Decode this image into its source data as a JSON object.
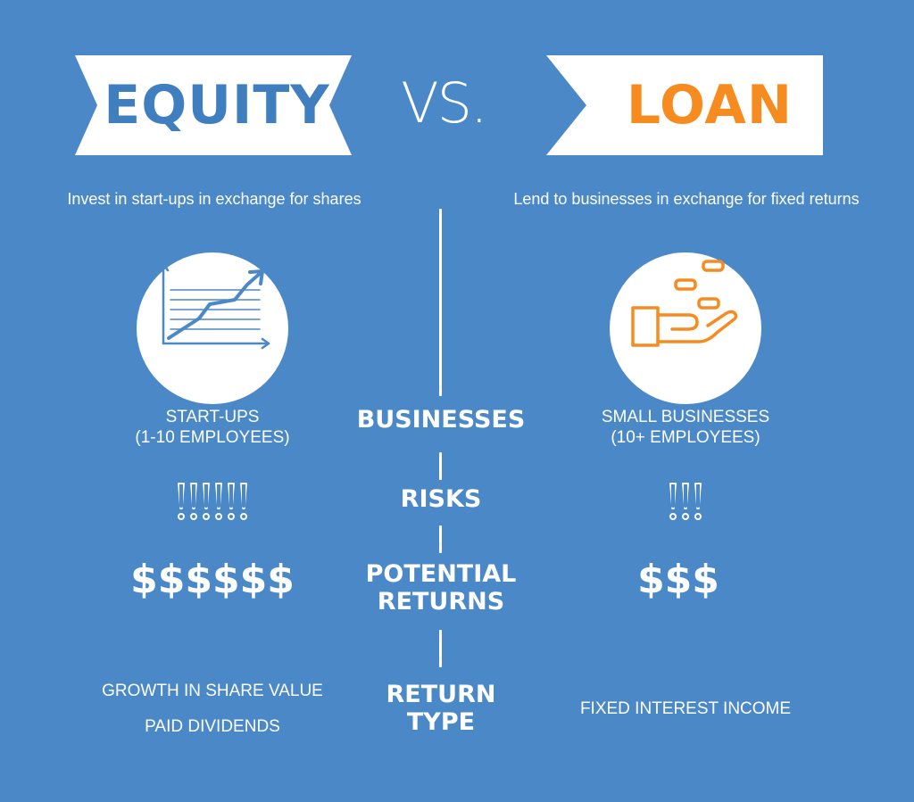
{
  "header": {
    "left_banner": "EQUITY",
    "vs": "VS.",
    "right_banner": "LOAN"
  },
  "colors": {
    "background": "#4a88c8",
    "equity_accent": "#3f7fc0",
    "loan_accent": "#f68b1f",
    "banner_fill": "#ffffff"
  },
  "equity": {
    "tagline": "Invest in start-ups in exchange for shares",
    "icon": "growth-chart-icon",
    "businesses_line1": "START-UPS",
    "businesses_line2": "(1-10 EMPLOYEES)",
    "risk_count": 6,
    "returns": "$$$$$$",
    "return_type_line1": "GROWTH IN SHARE VALUE",
    "return_type_line2": "PAID DIVIDENDS"
  },
  "loan": {
    "tagline": "Lend to businesses in exchange for fixed returns",
    "icon": "hand-coins-icon",
    "businesses_line1": "SMALL BUSINESSES",
    "businesses_line2": "(10+ EMPLOYEES)",
    "risk_count": 3,
    "returns": "$$$",
    "return_type": "FIXED INTEREST INCOME"
  },
  "labels": {
    "businesses": "BUSINESSES",
    "risks": "RISKS",
    "potential_returns_line1": "POTENTIAL",
    "potential_returns_line2": "RETURNS",
    "return_type_line1": "RETURN",
    "return_type_line2": "TYPE"
  }
}
